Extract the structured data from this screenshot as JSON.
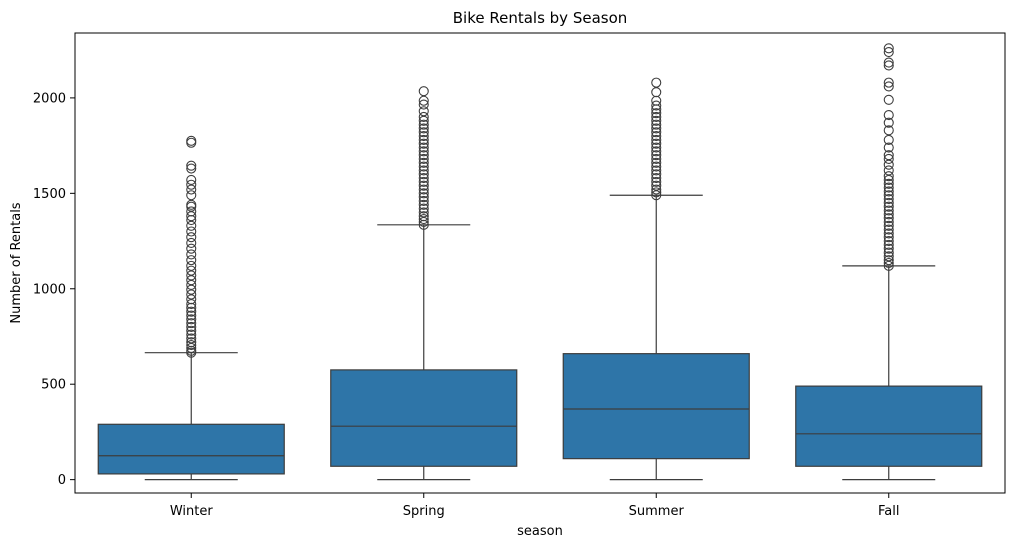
{
  "chart_data": {
    "type": "box",
    "title": "Bike Rentals by Season",
    "xlabel": "season",
    "ylabel": "Number of Rentals",
    "ylim": [
      -70,
      2340
    ],
    "yticks": [
      0,
      500,
      1000,
      1500,
      2000
    ],
    "grid": false,
    "colors": {
      "box": "#2e75a8",
      "line": "#3d3d3d"
    },
    "categories": [
      "Winter",
      "Spring",
      "Summer",
      "Fall"
    ],
    "boxes": [
      {
        "category": "Winter",
        "whisker_low": 0,
        "q1": 30,
        "median": 125,
        "q3": 290,
        "whisker_high": 665,
        "outliers": [
          665,
          675,
          690,
          705,
          720,
          740,
          760,
          780,
          800,
          820,
          840,
          860,
          880,
          900,
          920,
          945,
          970,
          995,
          1020,
          1045,
          1070,
          1095,
          1120,
          1150,
          1180,
          1210,
          1240,
          1270,
          1300,
          1330,
          1360,
          1380,
          1405,
          1430,
          1440,
          1490,
          1520,
          1545,
          1570,
          1630,
          1645,
          1765,
          1775
        ]
      },
      {
        "category": "Spring",
        "whisker_low": 0,
        "q1": 70,
        "median": 280,
        "q3": 575,
        "whisker_high": 1335,
        "outliers": [
          1335,
          1350,
          1365,
          1380,
          1400,
          1420,
          1440,
          1460,
          1480,
          1500,
          1520,
          1540,
          1560,
          1580,
          1600,
          1620,
          1640,
          1660,
          1680,
          1700,
          1720,
          1740,
          1760,
          1780,
          1800,
          1820,
          1840,
          1860,
          1880,
          1900,
          1930,
          1965,
          1985,
          2035
        ]
      },
      {
        "category": "Summer",
        "whisker_low": 0,
        "q1": 110,
        "median": 370,
        "q3": 660,
        "whisker_high": 1490,
        "outliers": [
          1490,
          1505,
          1520,
          1540,
          1560,
          1580,
          1600,
          1620,
          1640,
          1660,
          1680,
          1700,
          1720,
          1740,
          1760,
          1780,
          1800,
          1820,
          1840,
          1860,
          1880,
          1900,
          1920,
          1940,
          1960,
          1985,
          2030,
          2080
        ]
      },
      {
        "category": "Fall",
        "whisker_low": 0,
        "q1": 70,
        "median": 240,
        "q3": 490,
        "whisker_high": 1120,
        "outliers": [
          1120,
          1135,
          1150,
          1170,
          1190,
          1210,
          1230,
          1250,
          1270,
          1290,
          1310,
          1330,
          1350,
          1370,
          1390,
          1410,
          1430,
          1450,
          1470,
          1490,
          1510,
          1530,
          1550,
          1570,
          1590,
          1620,
          1650,
          1680,
          1700,
          1740,
          1780,
          1830,
          1870,
          1910,
          1990,
          2060,
          2080,
          2170,
          2185,
          2240,
          2260
        ]
      }
    ]
  }
}
